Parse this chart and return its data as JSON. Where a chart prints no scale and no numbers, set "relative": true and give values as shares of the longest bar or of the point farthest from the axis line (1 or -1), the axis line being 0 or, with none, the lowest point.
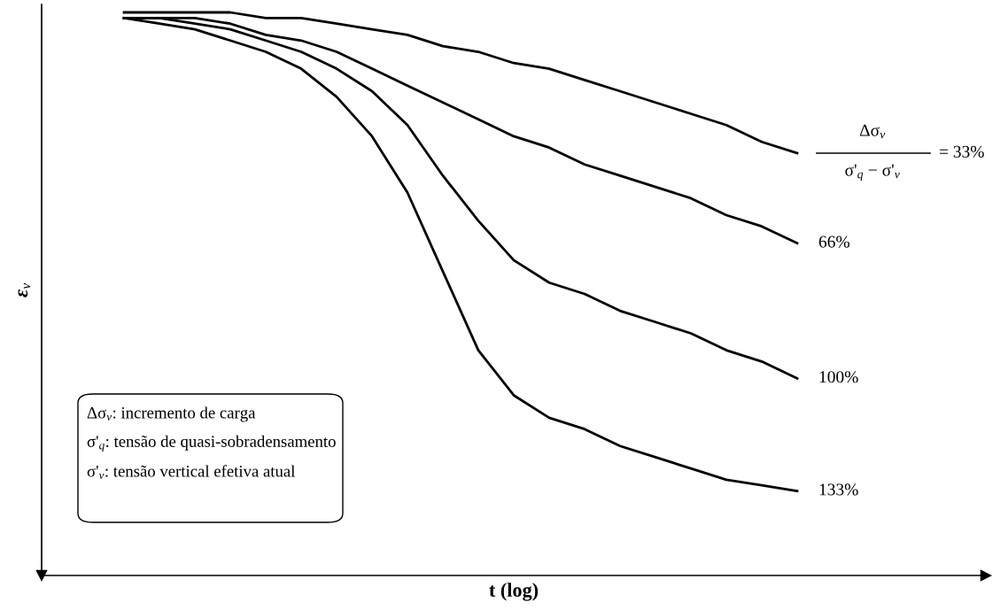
{
  "chart_data": {
    "type": "line",
    "relative": true,
    "xlabel": "t (log)",
    "ylabel": "ε$_{v}$",
    "legend": false,
    "marker": "none",
    "line_style": "solid",
    "categories": [
      null,
      null,
      null,
      null,
      null,
      null,
      null,
      null,
      null,
      null,
      null,
      null,
      null,
      null,
      null,
      null,
      null,
      null,
      null,
      null
    ],
    "series": [
      {
        "name": "= 33%",
        "color": "#000000",
        "values": [
          1.0,
          1.0,
          1.0,
          1.0,
          0.99,
          0.99,
          0.98,
          0.97,
          0.96,
          0.94,
          0.93,
          0.91,
          0.9,
          0.88,
          0.86,
          0.84,
          0.82,
          0.8,
          0.77,
          0.75
        ]
      },
      {
        "name": "66%",
        "color": "#000000",
        "values": [
          0.99,
          0.99,
          0.99,
          0.98,
          0.96,
          0.95,
          0.93,
          0.9,
          0.87,
          0.84,
          0.81,
          0.78,
          0.76,
          0.73,
          0.71,
          0.69,
          0.67,
          0.64,
          0.62,
          0.59
        ]
      },
      {
        "name": "100%",
        "color": "#000000",
        "values": [
          0.99,
          0.99,
          0.98,
          0.97,
          0.95,
          0.93,
          0.9,
          0.86,
          0.8,
          0.71,
          0.63,
          0.56,
          0.52,
          0.5,
          0.47,
          0.45,
          0.43,
          0.4,
          0.38,
          0.35
        ]
      },
      {
        "name": "133%",
        "color": "#000000",
        "values": [
          0.99,
          0.98,
          0.97,
          0.95,
          0.93,
          0.9,
          0.85,
          0.78,
          0.68,
          0.54,
          0.4,
          0.32,
          0.28,
          0.26,
          0.23,
          0.21,
          0.19,
          0.17,
          0.16,
          0.15
        ]
      }
    ],
    "annotations": [
      "Δσ$_{v}$",
      "σ'$_{q}$ − σ'$_{v}$",
      "Δσ$_{v}$: incremento de carga",
      "σ'$_{q}$: tensão de quasi-sobradensamento",
      "σ'$_{v}$: tensão vertical efetiva atual"
    ]
  }
}
